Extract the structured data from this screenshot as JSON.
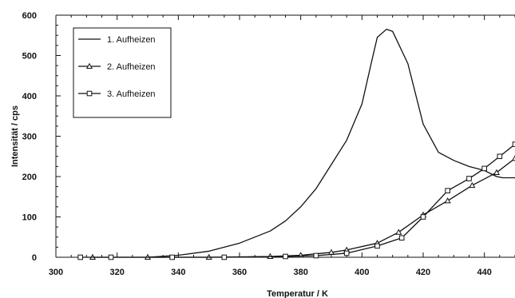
{
  "chart_data": {
    "type": "line",
    "title": "",
    "xlabel": "Temperatur / K",
    "ylabel": "Intensität / cps",
    "xlim": [
      300,
      450
    ],
    "ylim": [
      0,
      600
    ],
    "x_ticks": [
      300,
      320,
      340,
      360,
      380,
      400,
      420,
      440
    ],
    "y_ticks": [
      0,
      100,
      200,
      300,
      400,
      500,
      600
    ],
    "grid": false,
    "legend_position": "top-left",
    "series": [
      {
        "name": "1. Aufheizen",
        "marker": "none",
        "color": "#111111",
        "points": [
          [
            330,
            0
          ],
          [
            340,
            5
          ],
          [
            350,
            15
          ],
          [
            360,
            35
          ],
          [
            370,
            65
          ],
          [
            375,
            90
          ],
          [
            380,
            125
          ],
          [
            385,
            170
          ],
          [
            390,
            230
          ],
          [
            395,
            290
          ],
          [
            400,
            380
          ],
          [
            403,
            480
          ],
          [
            405,
            545
          ],
          [
            408,
            565
          ],
          [
            410,
            560
          ],
          [
            415,
            480
          ],
          [
            420,
            330
          ],
          [
            425,
            260
          ],
          [
            430,
            240
          ],
          [
            435,
            225
          ],
          [
            440,
            215
          ],
          [
            444,
            200
          ],
          [
            446,
            197
          ],
          [
            450,
            197
          ]
        ]
      },
      {
        "name": "2. Aufheizen",
        "marker": "triangle",
        "color": "#111111",
        "points": [
          [
            312,
            0
          ],
          [
            330,
            0
          ],
          [
            350,
            0
          ],
          [
            370,
            2
          ],
          [
            380,
            5
          ],
          [
            390,
            12
          ],
          [
            395,
            18
          ],
          [
            405,
            35
          ],
          [
            412,
            62
          ],
          [
            420,
            105
          ],
          [
            428,
            140
          ],
          [
            436,
            178
          ],
          [
            444,
            210
          ],
          [
            450,
            245
          ]
        ]
      },
      {
        "name": "3. Aufheizen",
        "marker": "square",
        "color": "#111111",
        "points": [
          [
            308,
            0
          ],
          [
            318,
            0
          ],
          [
            338,
            0
          ],
          [
            355,
            0
          ],
          [
            375,
            2
          ],
          [
            385,
            4
          ],
          [
            395,
            10
          ],
          [
            405,
            28
          ],
          [
            413,
            48
          ],
          [
            420,
            100
          ],
          [
            428,
            165
          ],
          [
            435,
            195
          ],
          [
            440,
            220
          ],
          [
            445,
            250
          ],
          [
            450,
            280
          ]
        ]
      }
    ]
  }
}
